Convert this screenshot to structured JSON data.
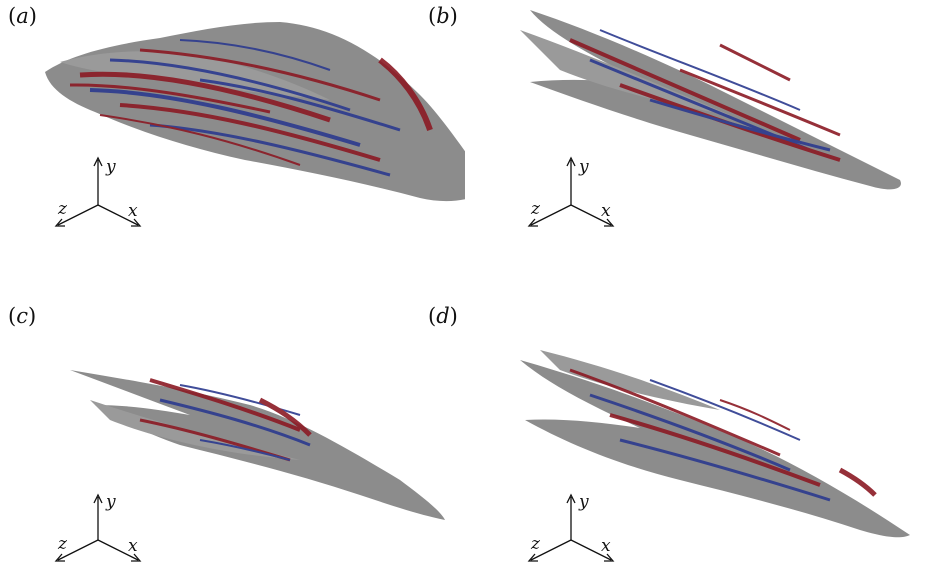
{
  "panels": [
    {
      "id": "a",
      "label": "a",
      "axes": {
        "x": "x",
        "y": "y",
        "z": "z"
      }
    },
    {
      "id": "b",
      "label": "b",
      "axes": {
        "x": "x",
        "y": "y",
        "z": "z"
      }
    },
    {
      "id": "c",
      "label": "c",
      "axes": {
        "x": "x",
        "y": "y",
        "z": "z"
      }
    },
    {
      "id": "d",
      "label": "d",
      "axes": {
        "x": "x",
        "y": "y",
        "z": "z"
      }
    }
  ],
  "colors": {
    "surface": "#8c8c8c",
    "positive": "#8b1a24",
    "negative": "#2c3a8f"
  }
}
